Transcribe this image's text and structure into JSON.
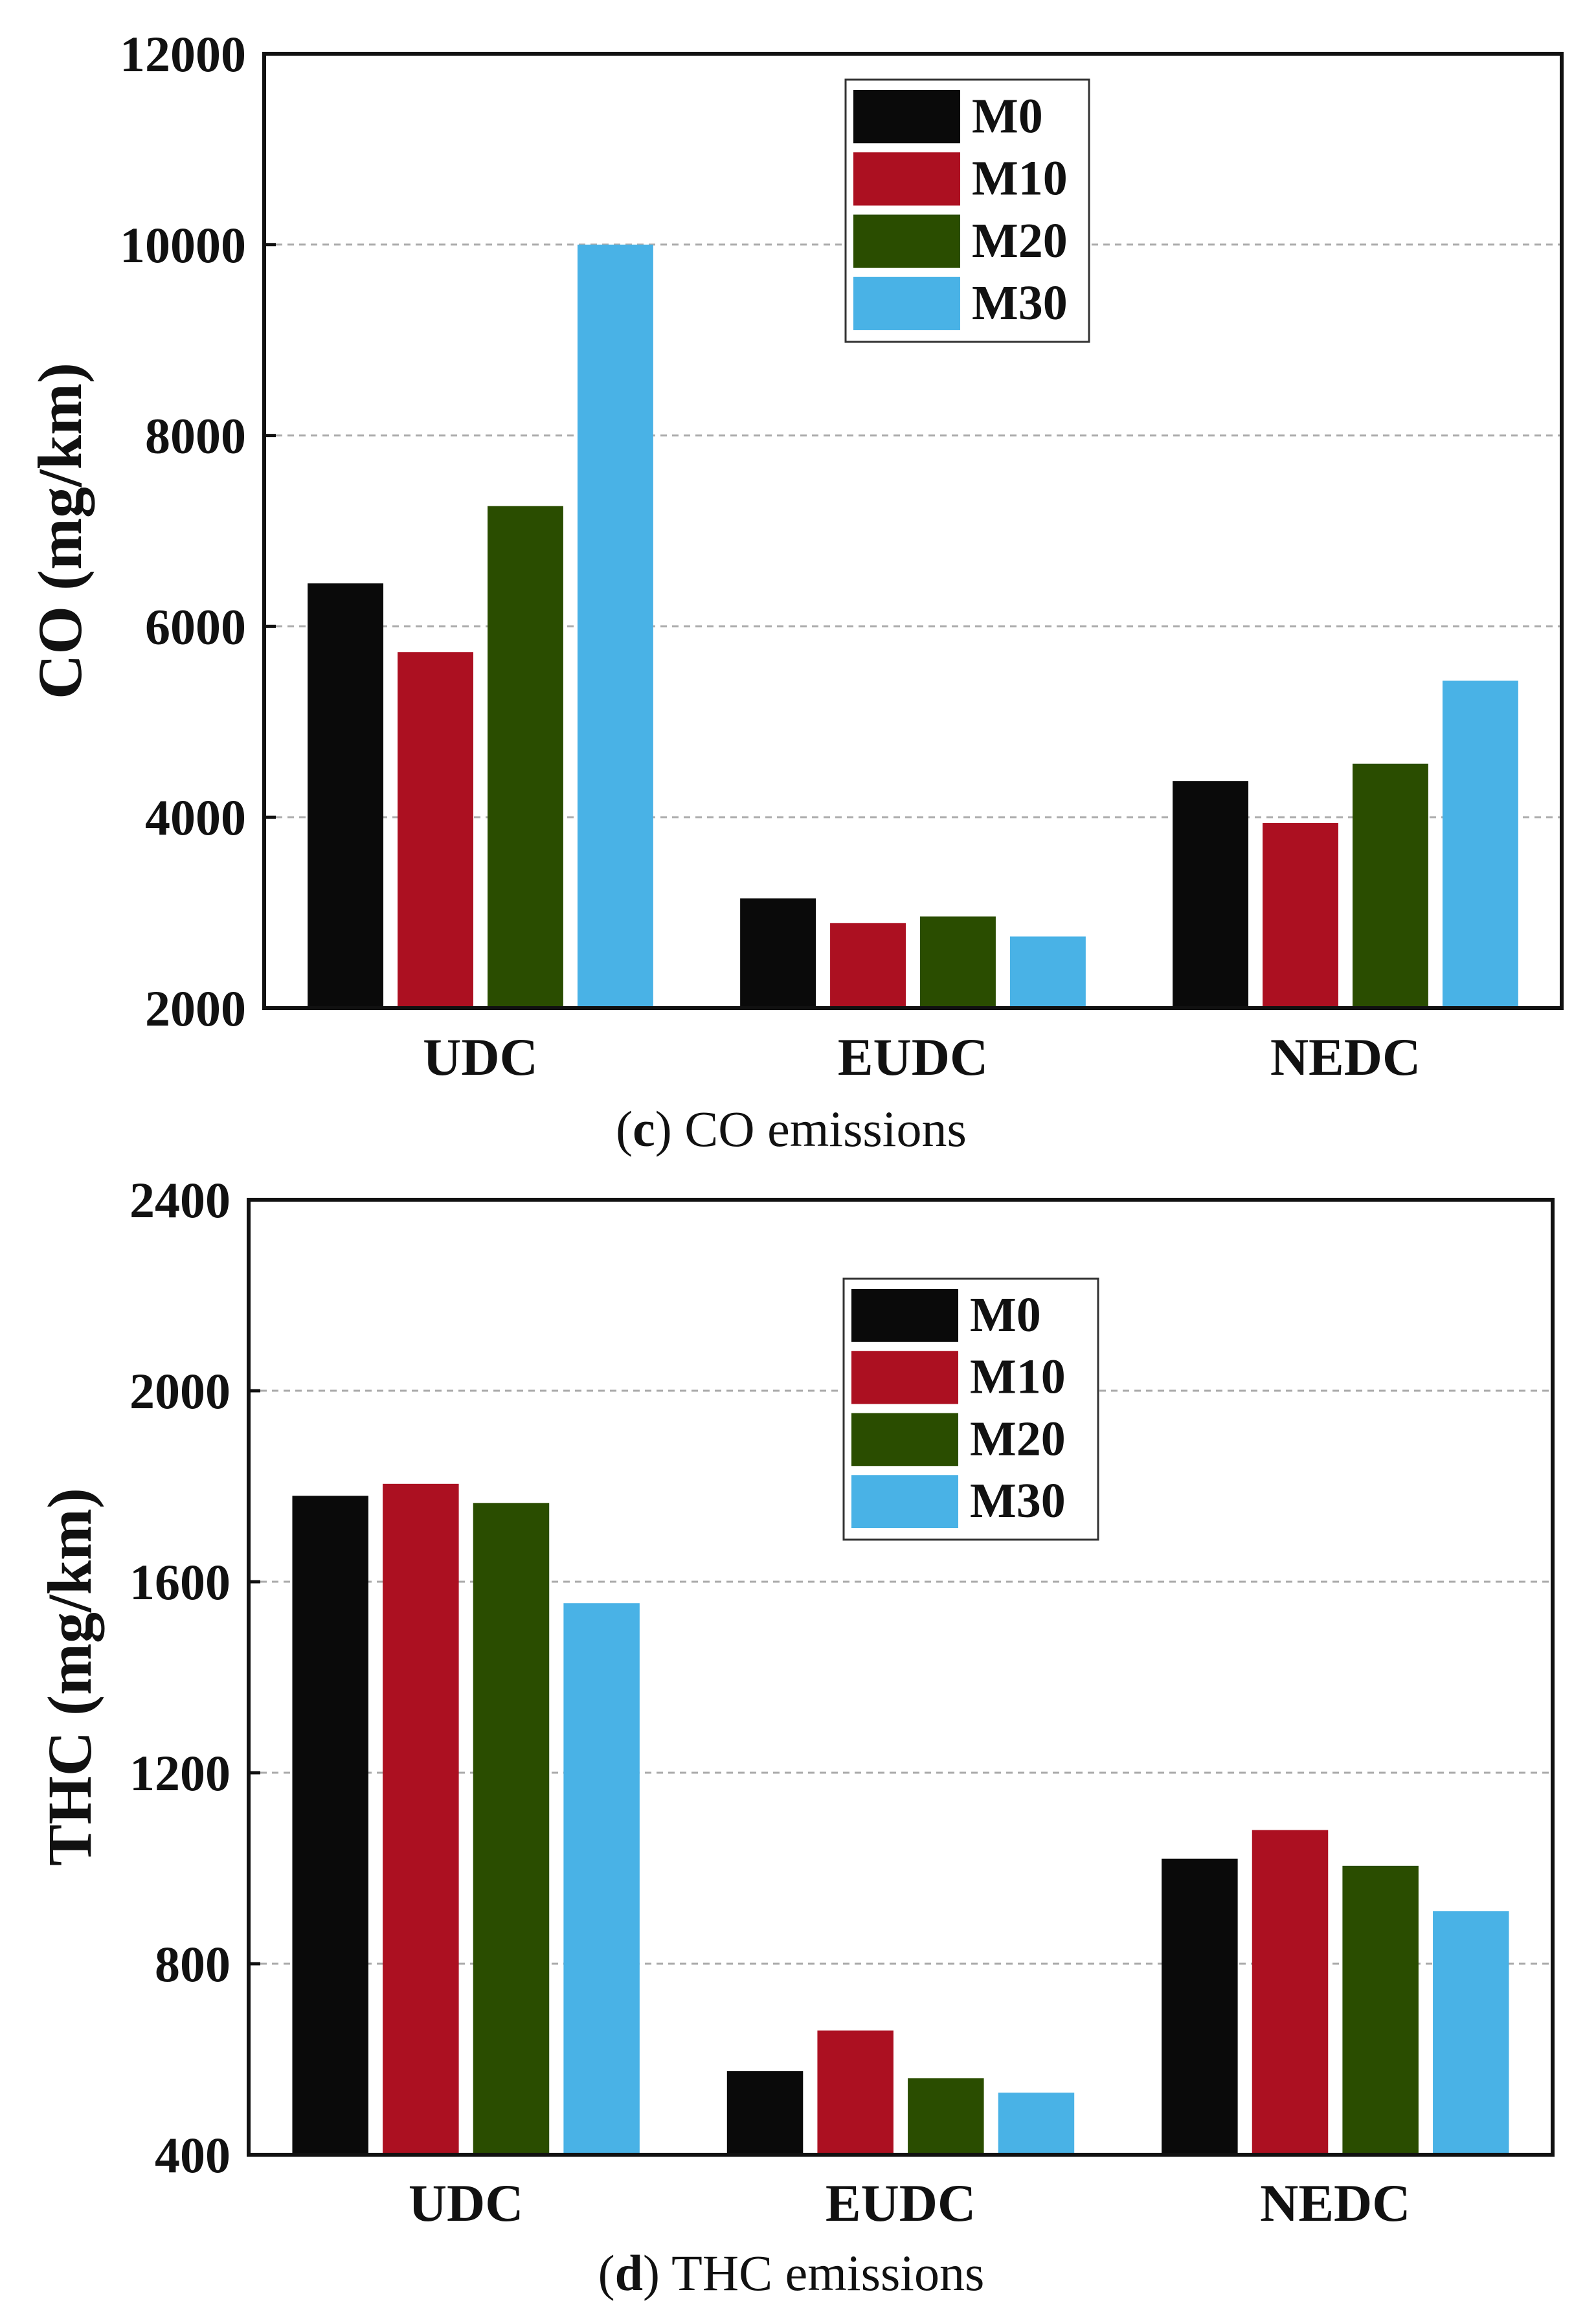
{
  "colors": {
    "M0": "#0a0a0a",
    "M10": "#ac1021",
    "M20": "#2a4d00",
    "M30": "#49b2e6",
    "grid": "#aaaaaa",
    "axis": "#111111"
  },
  "chart_data": [
    {
      "type": "bar",
      "ylabel": "CO (mg/km)",
      "xlabel": "",
      "categories": [
        "UDC",
        "EUDC",
        "NEDC"
      ],
      "series": [
        {
          "name": "M0",
          "values": [
            6450,
            3150,
            4380
          ]
        },
        {
          "name": "M10",
          "values": [
            5730,
            2890,
            3940
          ]
        },
        {
          "name": "M20",
          "values": [
            7260,
            2960,
            4560
          ]
        },
        {
          "name": "M30",
          "values": [
            10000,
            2750,
            5430
          ]
        }
      ],
      "ylim": [
        2000,
        12000
      ],
      "yticks": [
        2000,
        4000,
        6000,
        8000,
        10000,
        12000
      ],
      "ytick_labels": [
        "2000",
        "4000",
        "6000",
        "8000",
        "10000",
        "12000"
      ],
      "grid": true,
      "legend_position": "top-center",
      "caption_letter": "c",
      "caption_text": "CO emissions"
    },
    {
      "type": "bar",
      "ylabel": "THC (mg/km)",
      "xlabel": "",
      "categories": [
        "UDC",
        "EUDC",
        "NEDC"
      ],
      "series": [
        {
          "name": "M0",
          "values": [
            1780,
            575,
            1020
          ]
        },
        {
          "name": "M10",
          "values": [
            1805,
            660,
            1080
          ]
        },
        {
          "name": "M20",
          "values": [
            1765,
            560,
            1005
          ]
        },
        {
          "name": "M30",
          "values": [
            1555,
            530,
            910
          ]
        }
      ],
      "ylim": [
        400,
        2400
      ],
      "yticks": [
        400,
        800,
        1200,
        1600,
        2000,
        2400
      ],
      "ytick_labels": [
        "400",
        "800",
        "1200",
        "1600",
        "2000",
        "2400"
      ],
      "grid": true,
      "legend_position": "top-center",
      "caption_letter": "d",
      "caption_text": "THC emissions"
    }
  ]
}
